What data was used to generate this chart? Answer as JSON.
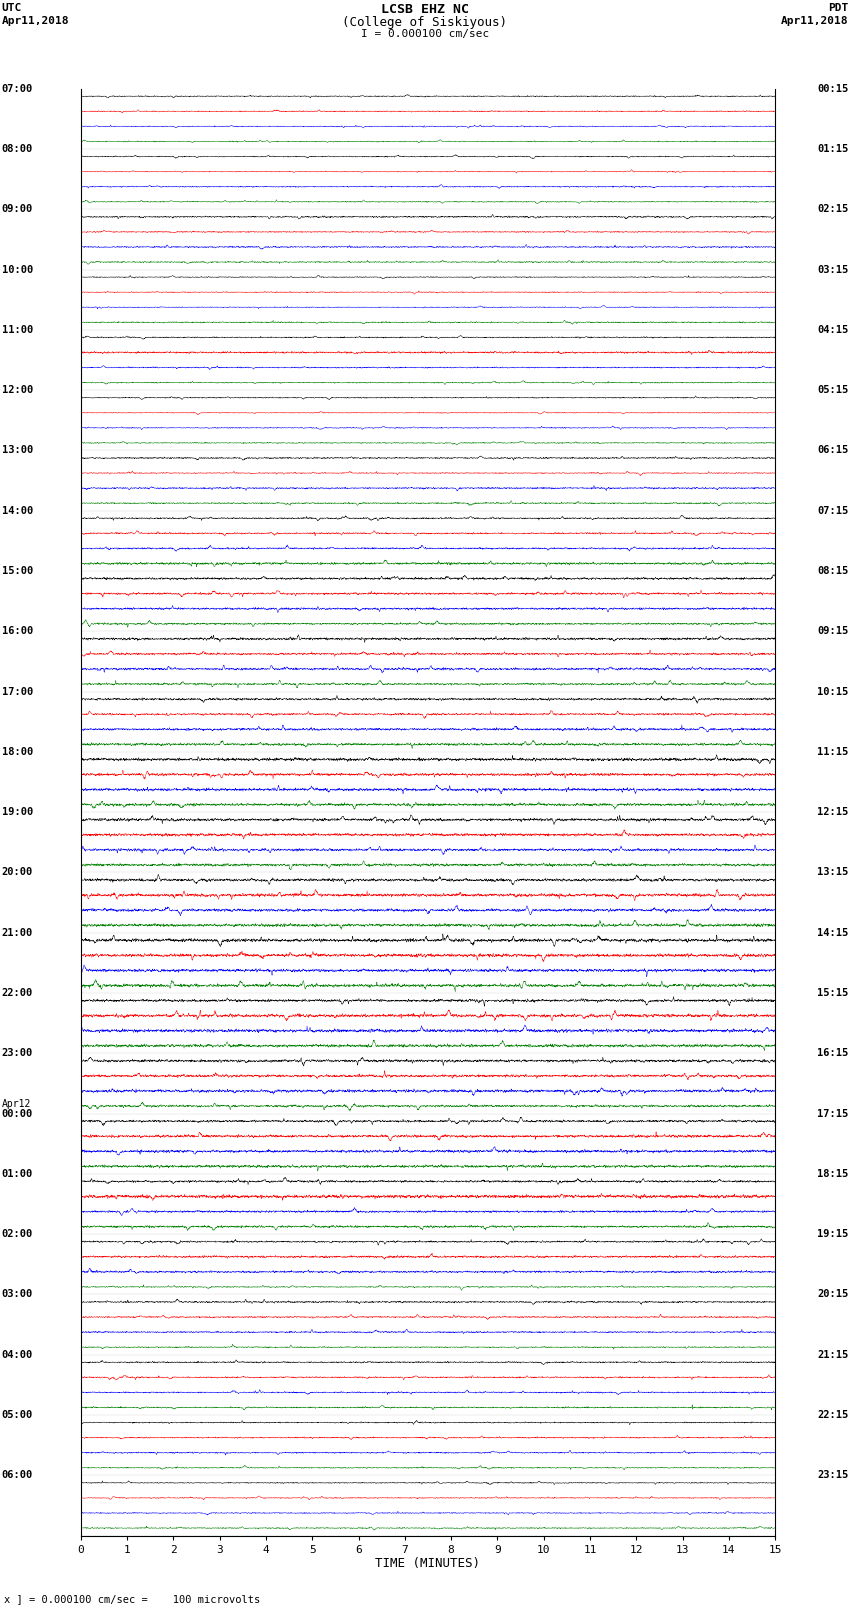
{
  "title_line1": "LCSB EHZ NC",
  "title_line2": "(College of Siskiyous)",
  "title_scale": "I = 0.000100 cm/sec",
  "left_header_line1": "UTC",
  "left_header_line2": "Apr11,2018",
  "right_header_line1": "PDT",
  "right_header_line2": "Apr11,2018",
  "xlabel": "TIME (MINUTES)",
  "bottom_note": "x ] = 0.000100 cm/sec =    100 microvolts",
  "utc_labels": [
    [
      "07:00",
      0
    ],
    [
      "08:00",
      4
    ],
    [
      "09:00",
      8
    ],
    [
      "10:00",
      12
    ],
    [
      "11:00",
      16
    ],
    [
      "12:00",
      20
    ],
    [
      "13:00",
      24
    ],
    [
      "14:00",
      28
    ],
    [
      "15:00",
      32
    ],
    [
      "16:00",
      36
    ],
    [
      "17:00",
      40
    ],
    [
      "18:00",
      44
    ],
    [
      "19:00",
      48
    ],
    [
      "20:00",
      52
    ],
    [
      "21:00",
      56
    ],
    [
      "22:00",
      60
    ],
    [
      "23:00",
      64
    ],
    [
      "Apr12",
      68
    ],
    [
      "00:00",
      68
    ],
    [
      "01:00",
      72
    ],
    [
      "02:00",
      76
    ],
    [
      "03:00",
      80
    ],
    [
      "04:00",
      84
    ],
    [
      "05:00",
      88
    ],
    [
      "06:00",
      92
    ]
  ],
  "pdt_labels": [
    [
      "00:15",
      0
    ],
    [
      "01:15",
      4
    ],
    [
      "02:15",
      8
    ],
    [
      "03:15",
      12
    ],
    [
      "04:15",
      16
    ],
    [
      "05:15",
      20
    ],
    [
      "06:15",
      24
    ],
    [
      "07:15",
      28
    ],
    [
      "08:15",
      32
    ],
    [
      "09:15",
      36
    ],
    [
      "10:15",
      40
    ],
    [
      "11:15",
      44
    ],
    [
      "12:15",
      48
    ],
    [
      "13:15",
      52
    ],
    [
      "14:15",
      56
    ],
    [
      "15:15",
      60
    ],
    [
      "16:15",
      64
    ],
    [
      "17:15",
      68
    ],
    [
      "18:15",
      72
    ],
    [
      "19:15",
      76
    ],
    [
      "20:15",
      80
    ],
    [
      "21:15",
      84
    ],
    [
      "22:15",
      88
    ],
    [
      "23:15",
      92
    ]
  ],
  "trace_colors": [
    "black",
    "red",
    "blue",
    "green"
  ],
  "n_rows": 96,
  "x_min": 0,
  "x_max": 15,
  "x_ticks": [
    0,
    1,
    2,
    3,
    4,
    5,
    6,
    7,
    8,
    9,
    10,
    11,
    12,
    13,
    14,
    15
  ],
  "background_color": "white",
  "figsize": [
    8.5,
    16.13
  ],
  "dpi": 100,
  "seed": 42,
  "activity_profile": [
    0.06,
    0.06,
    0.06,
    0.06,
    0.07,
    0.07,
    0.07,
    0.07,
    0.08,
    0.08,
    0.08,
    0.08,
    0.07,
    0.07,
    0.07,
    0.07,
    0.07,
    0.07,
    0.07,
    0.07,
    0.07,
    0.07,
    0.07,
    0.07,
    0.08,
    0.08,
    0.1,
    0.1,
    0.1,
    0.1,
    0.12,
    0.12,
    0.14,
    0.14,
    0.14,
    0.14,
    0.14,
    0.14,
    0.14,
    0.14,
    0.15,
    0.15,
    0.15,
    0.15,
    0.16,
    0.16,
    0.16,
    0.16,
    0.17,
    0.17,
    0.17,
    0.17,
    0.2,
    0.2,
    0.2,
    0.2,
    0.22,
    0.22,
    0.22,
    0.22,
    0.2,
    0.2,
    0.2,
    0.2,
    0.18,
    0.18,
    0.18,
    0.18,
    0.16,
    0.16,
    0.16,
    0.16,
    0.14,
    0.14,
    0.14,
    0.14,
    0.12,
    0.12,
    0.12,
    0.12,
    0.1,
    0.1,
    0.1,
    0.1,
    0.09,
    0.09,
    0.09,
    0.09,
    0.08,
    0.08,
    0.08,
    0.08,
    0.07,
    0.07,
    0.07,
    0.07
  ]
}
